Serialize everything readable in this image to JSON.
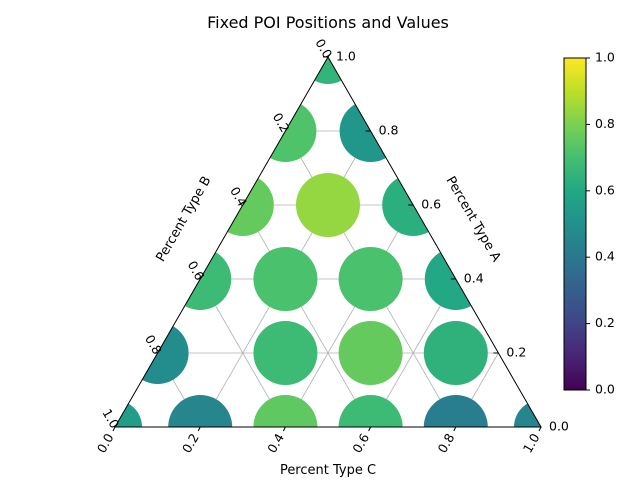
{
  "chart_data": {
    "type": "scatter",
    "title": "Fixed POI Positions and Values",
    "axes": {
      "a": {
        "label": "Percent Type A",
        "ticks": [
          "0.0",
          "0.2",
          "0.4",
          "0.6",
          "0.8",
          "1.0"
        ]
      },
      "b": {
        "label": "Percent Type B",
        "ticks": [
          "0.0",
          "0.2",
          "0.4",
          "0.6",
          "0.8",
          "1.0"
        ]
      },
      "c": {
        "label": "Percent Type C",
        "ticks": [
          "0.0",
          "0.2",
          "0.4",
          "0.6",
          "0.8",
          "1.0"
        ]
      }
    },
    "grid": true,
    "colormap": "viridis",
    "clim": [
      0,
      1
    ],
    "colorbar": {
      "ticks": [
        "0.0",
        "0.2",
        "0.4",
        "0.6",
        "0.8",
        "1.0"
      ],
      "placement": "right"
    },
    "points": [
      {
        "a": 0.0,
        "c": 0.0,
        "b": 1.0,
        "value": 0.55,
        "size": "small"
      },
      {
        "a": 0.0,
        "c": 0.2,
        "b": 0.8,
        "value": 0.45,
        "size": "large"
      },
      {
        "a": 0.0,
        "c": 0.4,
        "b": 0.6,
        "value": 0.75,
        "size": "large"
      },
      {
        "a": 0.0,
        "c": 0.6,
        "b": 0.4,
        "value": 0.68,
        "size": "large"
      },
      {
        "a": 0.0,
        "c": 0.8,
        "b": 0.2,
        "value": 0.42,
        "size": "large"
      },
      {
        "a": 0.0,
        "c": 1.0,
        "b": 0.0,
        "value": 0.45,
        "size": "small"
      },
      {
        "a": 0.2,
        "c": 0.0,
        "b": 0.8,
        "value": 0.48,
        "size": "medium"
      },
      {
        "a": 0.2,
        "c": 0.3,
        "b": 0.5,
        "value": 0.68,
        "size": "large"
      },
      {
        "a": 0.2,
        "c": 0.5,
        "b": 0.3,
        "value": 0.76,
        "size": "large"
      },
      {
        "a": 0.2,
        "c": 0.7,
        "b": 0.1,
        "value": 0.64,
        "size": "large"
      },
      {
        "a": 0.2,
        "c": 1.0,
        "b": -0.2,
        "value": 0.45,
        "size": "medium"
      },
      {
        "a": 0.4,
        "c": 0.0,
        "b": 0.6,
        "value": 0.68,
        "size": "medium"
      },
      {
        "a": 0.4,
        "c": 0.2,
        "b": 0.4,
        "value": 0.71,
        "size": "large"
      },
      {
        "a": 0.4,
        "c": 0.4,
        "b": 0.2,
        "value": 0.71,
        "size": "large"
      },
      {
        "a": 0.4,
        "c": 0.6,
        "b": 0.0,
        "value": 0.6,
        "size": "medium"
      },
      {
        "a": 0.6,
        "c": 0.0,
        "b": 0.4,
        "value": 0.76,
        "size": "medium"
      },
      {
        "a": 0.6,
        "c": 0.2,
        "b": 0.2,
        "value": 0.84,
        "size": "large"
      },
      {
        "a": 0.6,
        "c": 0.4,
        "b": 0.0,
        "value": 0.63,
        "size": "medium"
      },
      {
        "a": 0.8,
        "c": 0.0,
        "b": 0.2,
        "value": 0.72,
        "size": "medium"
      },
      {
        "a": 0.8,
        "c": 0.2,
        "b": 0.0,
        "value": 0.52,
        "size": "medium"
      },
      {
        "a": 1.0,
        "c": 0.0,
        "b": 0.0,
        "value": 0.65,
        "size": "small"
      }
    ]
  }
}
